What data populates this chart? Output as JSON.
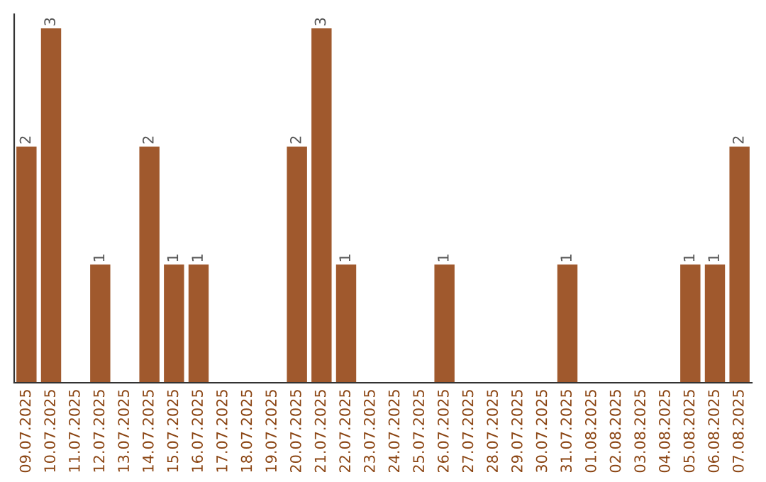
{
  "chart_data": {
    "type": "bar",
    "categories": [
      "09.07.2025",
      "10.07.2025",
      "11.07.2025",
      "12.07.2025",
      "13.07.2025",
      "14.07.2025",
      "15.07.2025",
      "16.07.2025",
      "17.07.2025",
      "18.07.2025",
      "19.07.2025",
      "20.07.2025",
      "21.07.2025",
      "22.07.2025",
      "23.07.2025",
      "24.07.2025",
      "25.07.2025",
      "26.07.2025",
      "27.07.2025",
      "28.07.2025",
      "29.07.2025",
      "30.07.2025",
      "31.07.2025",
      "01.08.2025",
      "02.08.2025",
      "03.08.2025",
      "04.08.2025",
      "05.08.2025",
      "06.08.2025",
      "07.08.2025"
    ],
    "values": [
      2,
      3,
      0,
      1,
      0,
      2,
      1,
      1,
      0,
      0,
      0,
      2,
      3,
      1,
      0,
      0,
      0,
      1,
      0,
      0,
      0,
      0,
      1,
      0,
      0,
      0,
      0,
      1,
      1,
      2
    ],
    "value_labels": [
      "2",
      "3",
      null,
      "1",
      null,
      "2",
      "1",
      "1",
      null,
      null,
      null,
      "2",
      "3",
      "1",
      null,
      null,
      null,
      "1",
      null,
      null,
      null,
      null,
      "1",
      null,
      null,
      null,
      null,
      "1",
      "1",
      "2"
    ],
    "color": "#a0592d"
  }
}
